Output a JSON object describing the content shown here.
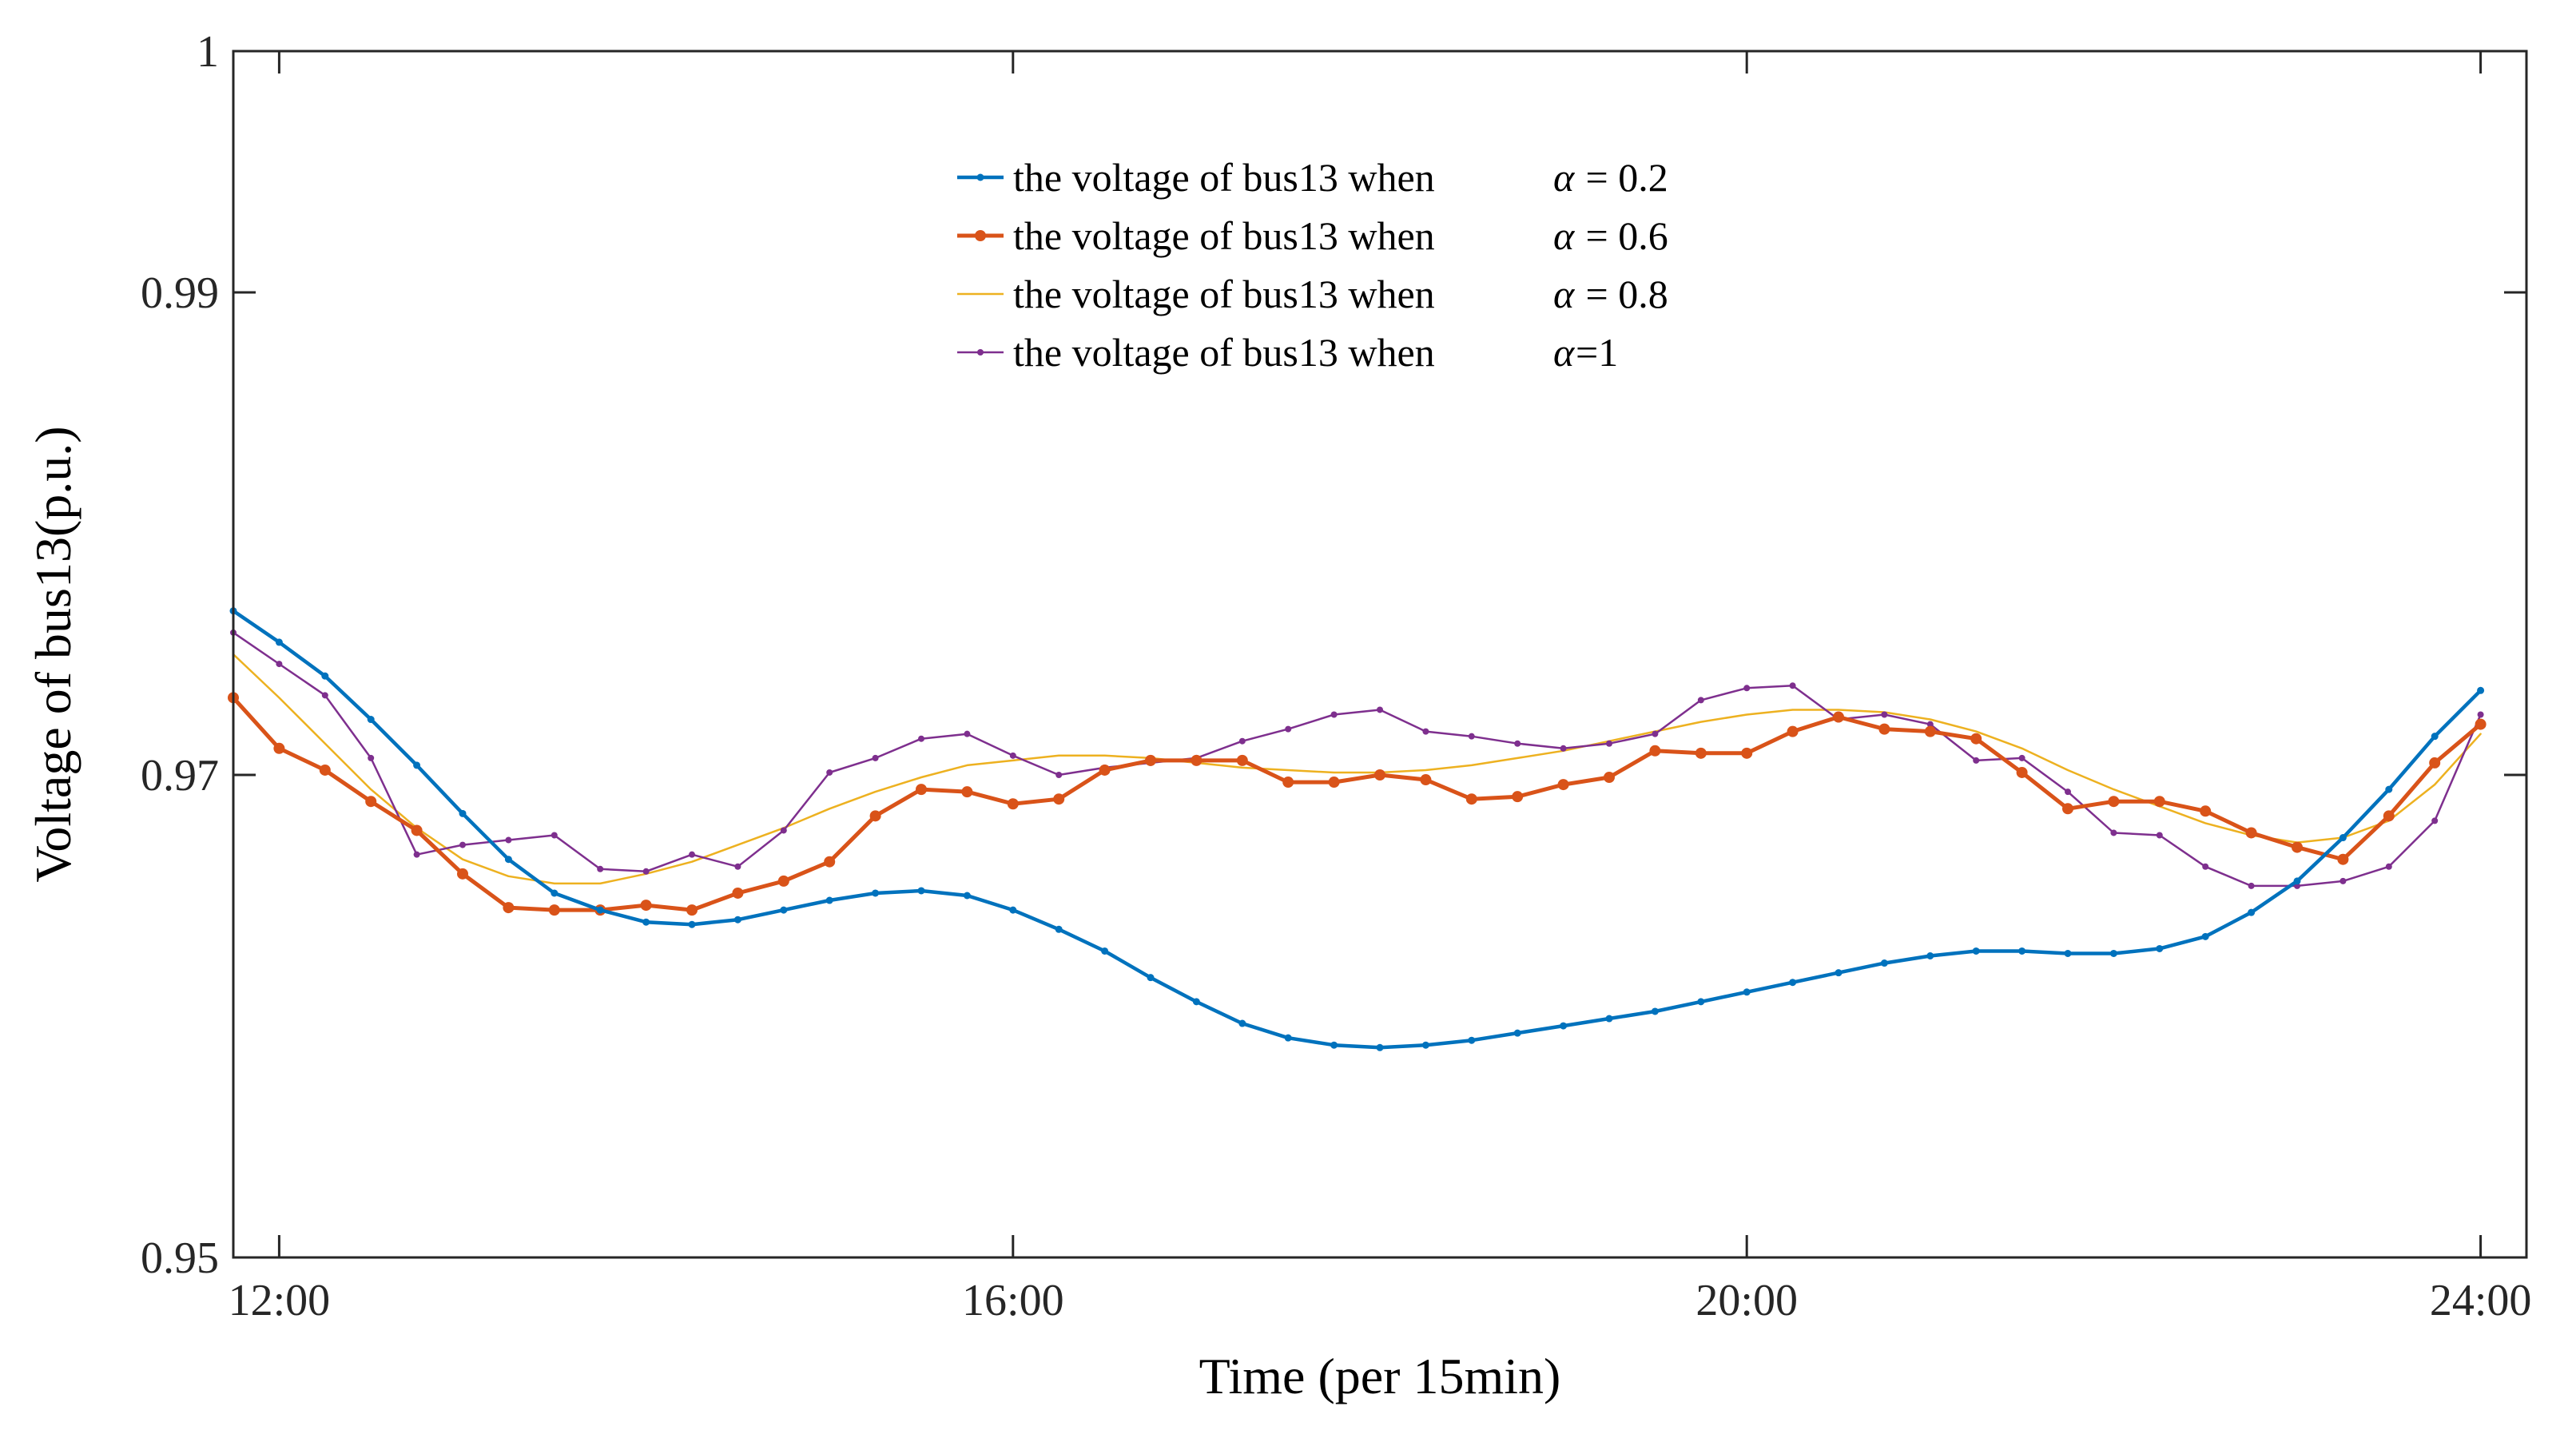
{
  "chart_data": {
    "type": "line",
    "title": "",
    "xlabel": "Time (per 15min)",
    "ylabel": "Voltage of bus13(p.u.)",
    "xlim": [
      11.75,
      24.25
    ],
    "ylim": [
      0.95,
      1.0
    ],
    "x_ticks": [
      {
        "value": 12,
        "label": "12:00"
      },
      {
        "value": 16,
        "label": "16:00"
      },
      {
        "value": 20,
        "label": "20:00"
      },
      {
        "value": 24,
        "label": "24:00"
      }
    ],
    "y_ticks": [
      {
        "value": 0.95,
        "label": "0.95"
      },
      {
        "value": 0.97,
        "label": "0.97"
      },
      {
        "value": 0.99,
        "label": "0.99"
      },
      {
        "value": 1.0,
        "label": "1"
      }
    ],
    "legend_position": "top-center",
    "x": [
      11.75,
      12.0,
      12.25,
      12.5,
      12.75,
      13.0,
      13.25,
      13.5,
      13.75,
      14.0,
      14.25,
      14.5,
      14.75,
      15.0,
      15.25,
      15.5,
      15.75,
      16.0,
      16.25,
      16.5,
      16.75,
      17.0,
      17.25,
      17.5,
      17.75,
      18.0,
      18.25,
      18.5,
      18.75,
      19.0,
      19.25,
      19.5,
      19.75,
      20.0,
      20.25,
      20.5,
      20.75,
      21.0,
      21.25,
      21.5,
      21.75,
      22.0,
      22.25,
      22.5,
      22.75,
      23.0,
      23.25,
      23.5,
      23.75,
      24.0
    ],
    "series": [
      {
        "name": "alpha02",
        "legend_prefix": "the voltage of bus13 when",
        "legend_symbol": "α",
        "legend_suffix": " = 0.2",
        "color": "#0072BD",
        "line_width": 4.5,
        "marker": "dot",
        "values": [
          0.9768,
          0.9755,
          0.9741,
          0.9723,
          0.9704,
          0.9684,
          0.9665,
          0.9651,
          0.9644,
          0.9639,
          0.9638,
          0.964,
          0.9644,
          0.9648,
          0.9651,
          0.9652,
          0.965,
          0.9644,
          0.9636,
          0.9627,
          0.9616,
          0.9606,
          0.9597,
          0.9591,
          0.9588,
          0.9587,
          0.9588,
          0.959,
          0.9593,
          0.9596,
          0.9599,
          0.9602,
          0.9606,
          0.961,
          0.9614,
          0.9618,
          0.9622,
          0.9625,
          0.9627,
          0.9627,
          0.9626,
          0.9626,
          0.9628,
          0.9633,
          0.9643,
          0.9656,
          0.9674,
          0.9694,
          0.9716,
          0.9735
        ]
      },
      {
        "name": "alpha06",
        "legend_prefix": "the voltage of bus13 when",
        "legend_symbol": "α",
        "legend_suffix": " = 0.6",
        "color": "#D95319",
        "line_width": 5,
        "marker": "filled-circle",
        "values": [
          0.9732,
          0.9711,
          0.9702,
          0.9689,
          0.9677,
          0.9659,
          0.9645,
          0.9644,
          0.9644,
          0.9646,
          0.9644,
          0.9651,
          0.9656,
          0.9664,
          0.9683,
          0.9694,
          0.9693,
          0.9688,
          0.969,
          0.9702,
          0.9706,
          0.9706,
          0.9706,
          0.9697,
          0.9697,
          0.97,
          0.9698,
          0.969,
          0.9691,
          0.9696,
          0.9699,
          0.971,
          0.9709,
          0.9709,
          0.9718,
          0.9724,
          0.9719,
          0.9718,
          0.9715,
          0.9701,
          0.9686,
          0.9689,
          0.9689,
          0.9685,
          0.9676,
          0.967,
          0.9665,
          0.9683,
          0.9705,
          0.9721
        ]
      },
      {
        "name": "alpha08",
        "legend_prefix": "the voltage of bus13 when",
        "legend_symbol": "α",
        "legend_suffix": " = 0.8",
        "color": "#EDB120",
        "line_width": 2.5,
        "marker": "none",
        "values": [
          0.975,
          0.9732,
          0.9713,
          0.9694,
          0.9678,
          0.9665,
          0.9658,
          0.9655,
          0.9655,
          0.9659,
          0.9664,
          0.9671,
          0.9678,
          0.9686,
          0.9693,
          0.9699,
          0.9704,
          0.9706,
          0.9708,
          0.9708,
          0.9707,
          0.9705,
          0.9703,
          0.9702,
          0.9701,
          0.9701,
          0.9702,
          0.9704,
          0.9707,
          0.971,
          0.9714,
          0.9718,
          0.9722,
          0.9725,
          0.9727,
          0.9727,
          0.9726,
          0.9723,
          0.9718,
          0.9711,
          0.9702,
          0.9694,
          0.9687,
          0.968,
          0.9675,
          0.9672,
          0.9674,
          0.9681,
          0.9696,
          0.9717
        ]
      },
      {
        "name": "alpha1",
        "legend_prefix": "the voltage of bus13 when",
        "legend_symbol": "α",
        "legend_suffix": "=1",
        "color": "#7E2F8E",
        "line_width": 2.5,
        "marker": "small-dot",
        "values": [
          0.9759,
          0.9746,
          0.9733,
          0.9707,
          0.9667,
          0.9671,
          0.9673,
          0.9675,
          0.9661,
          0.966,
          0.9667,
          0.9662,
          0.9677,
          0.9701,
          0.9707,
          0.9715,
          0.9717,
          0.9708,
          0.97,
          0.9703,
          0.9705,
          0.9707,
          0.9714,
          0.9719,
          0.9725,
          0.9727,
          0.9718,
          0.9716,
          0.9713,
          0.9711,
          0.9713,
          0.9717,
          0.9731,
          0.9736,
          0.9737,
          0.9723,
          0.9725,
          0.9721,
          0.9706,
          0.9707,
          0.9693,
          0.9676,
          0.9675,
          0.9662,
          0.9654,
          0.9654,
          0.9656,
          0.9662,
          0.9681,
          0.9725
        ]
      }
    ]
  }
}
